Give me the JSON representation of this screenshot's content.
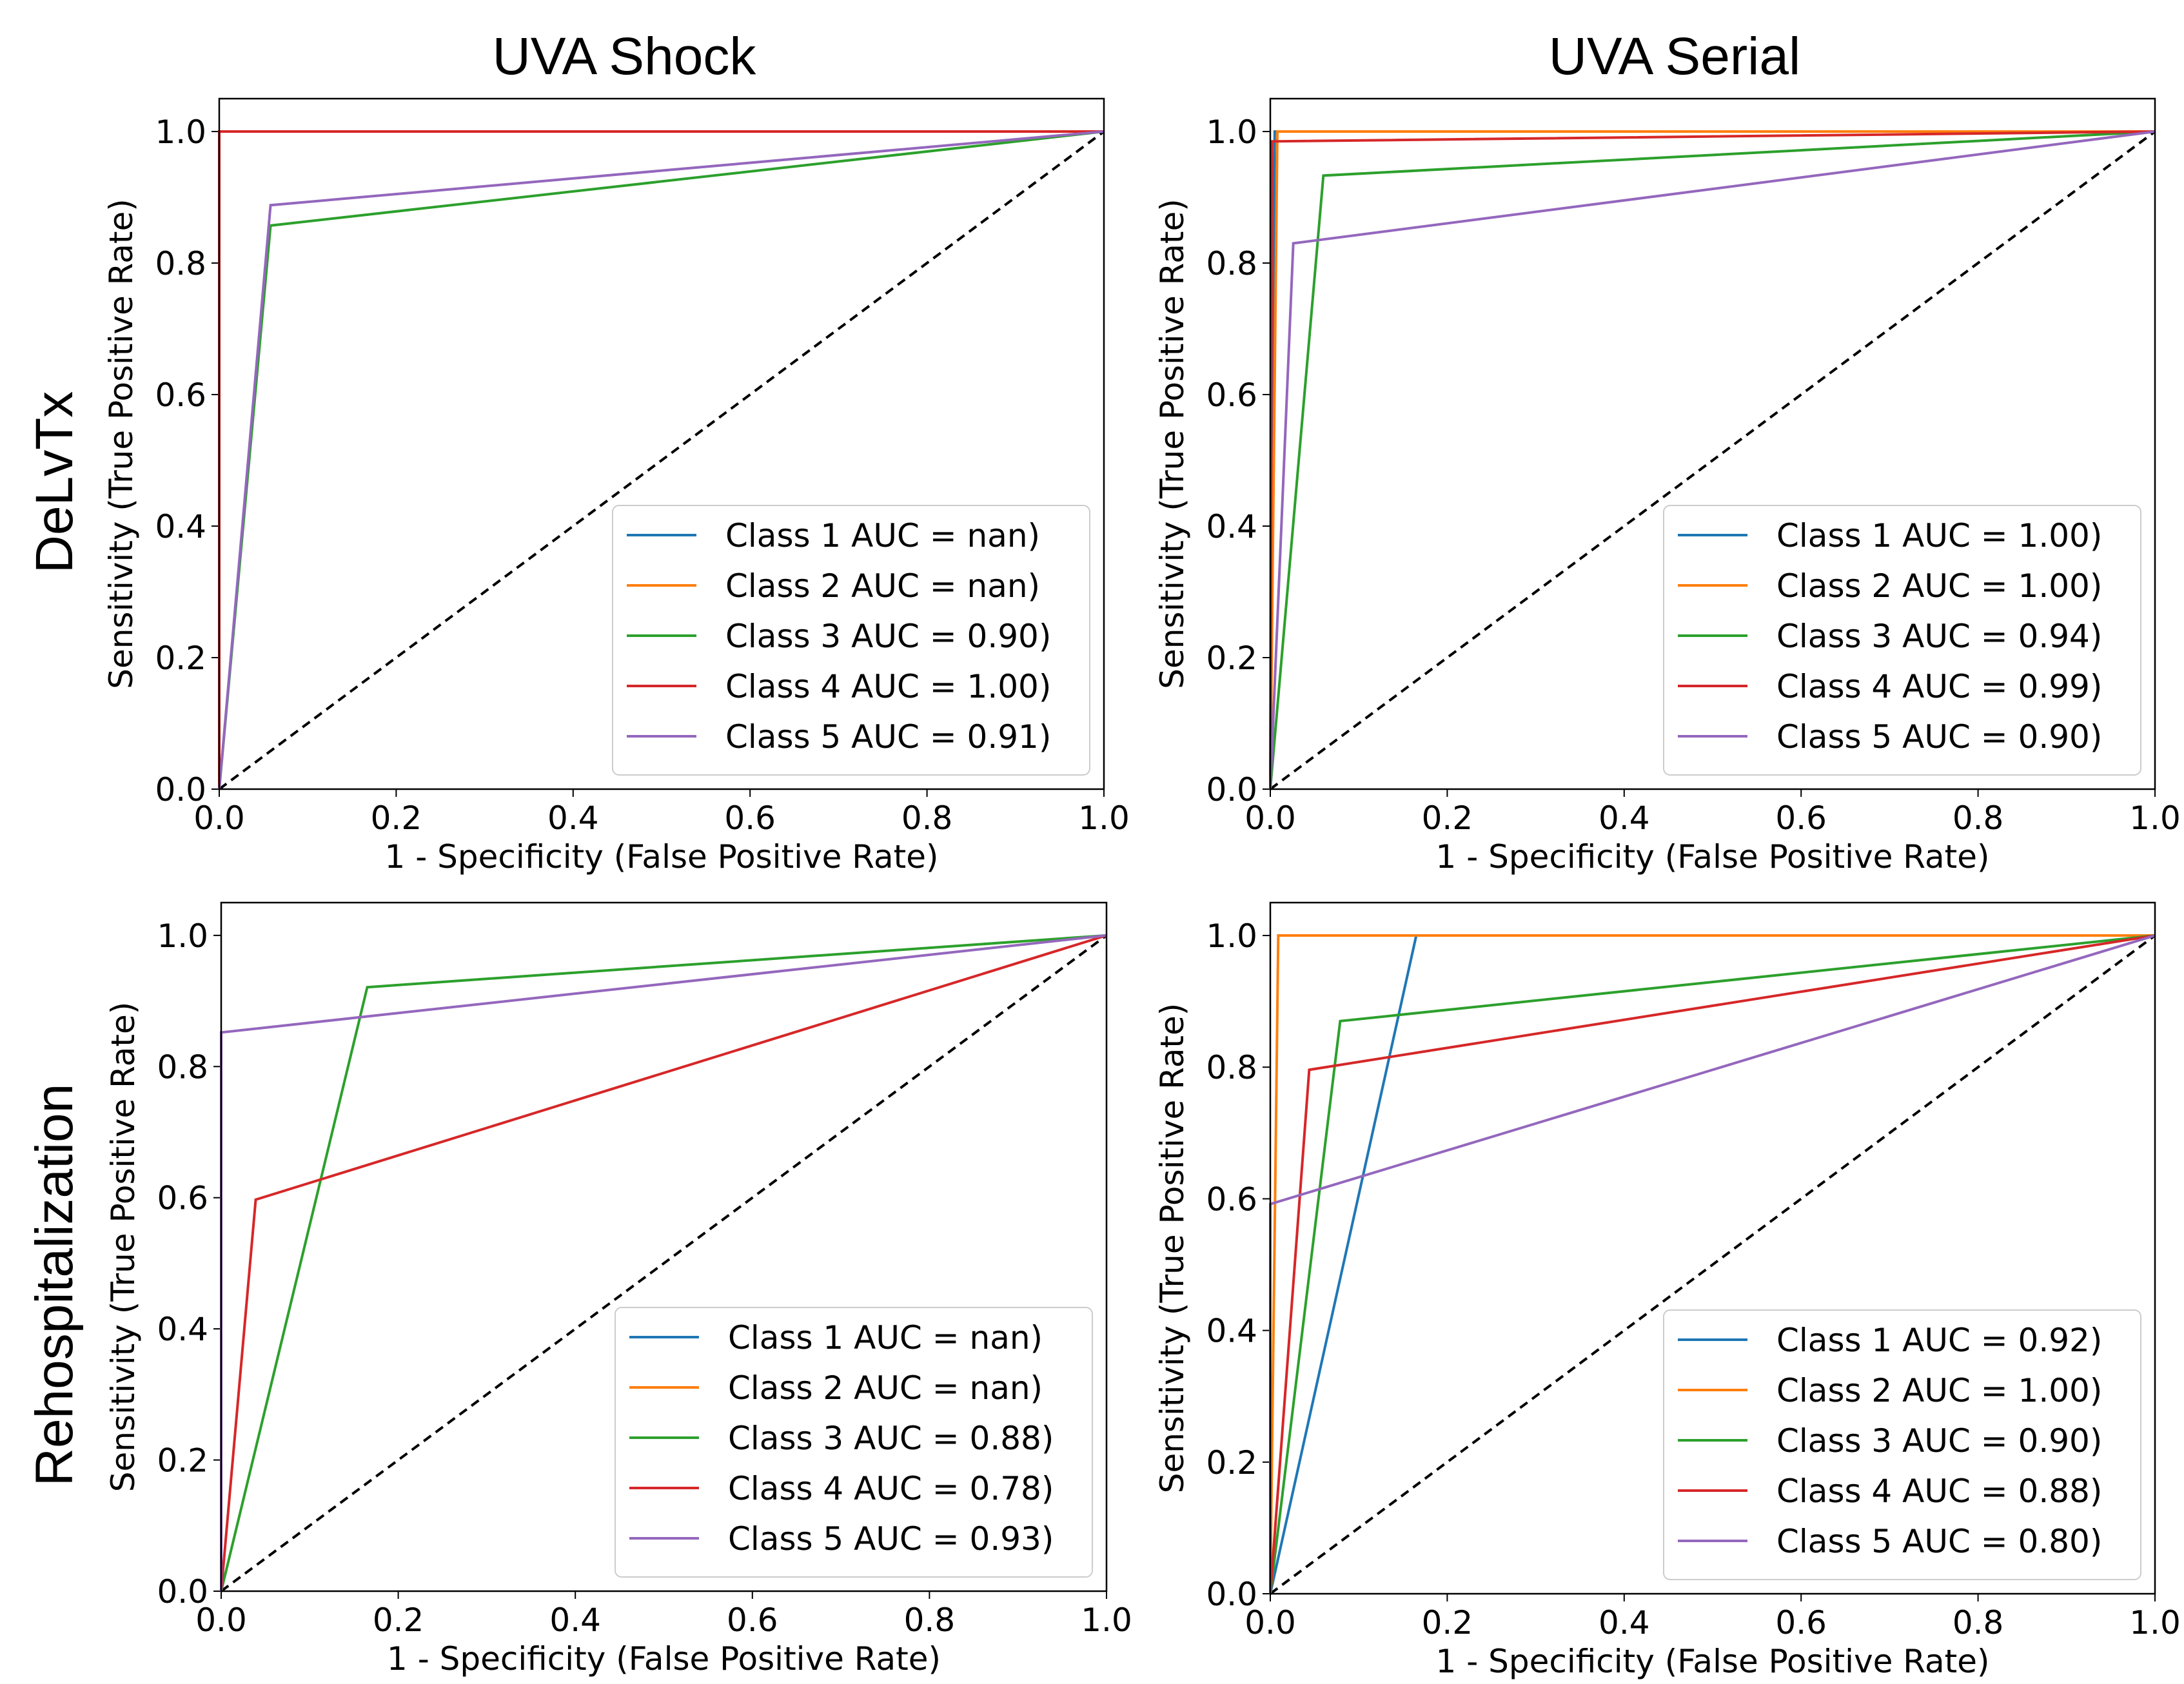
{
  "columns": [
    "UVA Shock",
    "UVA Serial"
  ],
  "rows": [
    "DeLvTx",
    "Rehospitalization"
  ],
  "colors": {
    "class1": "#1f77b4",
    "class2": "#ff7f0e",
    "class3": "#2ca02c",
    "class4": "#d62728",
    "class5": "#9467bd",
    "diagonal": "#000000"
  },
  "chart_data": [
    {
      "type": "line",
      "row": "DeLvTx",
      "column": "UVA Shock",
      "xlabel": "1 - Specificity (False Positive Rate)",
      "ylabel": "Sensitivity (True Positive Rate)",
      "xlim": [
        0,
        1
      ],
      "ylim": [
        0,
        1.05
      ],
      "xticks": [
        "0.0",
        "0.2",
        "0.4",
        "0.6",
        "0.8",
        "1.0"
      ],
      "yticks": [
        "0.0",
        "0.2",
        "0.4",
        "0.6",
        "0.8",
        "1.0"
      ],
      "legend_position": "lower right",
      "diagonal": [
        [
          0,
          0
        ],
        [
          1,
          1
        ]
      ],
      "series": [
        {
          "name": "Class 1 AUC = nan)",
          "color": "class1",
          "points": []
        },
        {
          "name": "Class 2 AUC = nan)",
          "color": "class2",
          "points": []
        },
        {
          "name": "Class 3 AUC = 0.90)",
          "color": "class3",
          "points": [
            [
              0,
              0
            ],
            [
              0.058,
              0.857
            ],
            [
              1,
              1
            ]
          ]
        },
        {
          "name": "Class 4 AUC = 1.00)",
          "color": "class4",
          "points": [
            [
              0,
              0
            ],
            [
              0,
              1
            ],
            [
              1,
              1
            ]
          ]
        },
        {
          "name": "Class 5 AUC = 0.91)",
          "color": "class5",
          "points": [
            [
              0,
              0
            ],
            [
              0.058,
              0.888
            ],
            [
              1,
              1
            ]
          ]
        }
      ]
    },
    {
      "type": "line",
      "row": "DeLvTx",
      "column": "UVA Serial",
      "xlabel": "1 - Specificity (False Positive Rate)",
      "ylabel": "Sensitivity (True Positive Rate)",
      "xlim": [
        0,
        1
      ],
      "ylim": [
        0,
        1.05
      ],
      "xticks": [
        "0.0",
        "0.2",
        "0.4",
        "0.6",
        "0.8",
        "1.0"
      ],
      "yticks": [
        "0.0",
        "0.2",
        "0.4",
        "0.6",
        "0.8",
        "1.0"
      ],
      "legend_position": "lower right",
      "diagonal": [
        [
          0,
          0
        ],
        [
          1,
          1
        ]
      ],
      "series": [
        {
          "name": "Class 1 AUC = 1.00)",
          "color": "class1",
          "points": [
            [
              0,
              0
            ],
            [
              0.005,
              1
            ],
            [
              1,
              1
            ]
          ]
        },
        {
          "name": "Class 2 AUC = 1.00)",
          "color": "class2",
          "points": [
            [
              0,
              0
            ],
            [
              0.008,
              1
            ],
            [
              1,
              1
            ]
          ]
        },
        {
          "name": "Class 3 AUC = 0.94)",
          "color": "class3",
          "points": [
            [
              0,
              0
            ],
            [
              0.06,
              0.933
            ],
            [
              1,
              1
            ]
          ]
        },
        {
          "name": "Class 4 AUC = 0.99)",
          "color": "class4",
          "points": [
            [
              0,
              0
            ],
            [
              0.002,
              0.985
            ],
            [
              1,
              1
            ]
          ]
        },
        {
          "name": "Class 5 AUC = 0.90)",
          "color": "class5",
          "points": [
            [
              0,
              0
            ],
            [
              0.026,
              0.83
            ],
            [
              1,
              1
            ]
          ]
        }
      ]
    },
    {
      "type": "line",
      "row": "Rehospitalization",
      "column": "UVA Shock",
      "xlabel": "1 - Specificity (False Positive Rate)",
      "ylabel": "Sensitivity (True Positive Rate)",
      "xlim": [
        0,
        1
      ],
      "ylim": [
        0,
        1.05
      ],
      "xticks": [
        "0.0",
        "0.2",
        "0.4",
        "0.6",
        "0.8",
        "1.0"
      ],
      "yticks": [
        "0.0",
        "0.2",
        "0.4",
        "0.6",
        "0.8",
        "1.0"
      ],
      "legend_position": "lower right",
      "diagonal": [
        [
          0,
          0
        ],
        [
          1,
          1
        ]
      ],
      "series": [
        {
          "name": "Class 1 AUC = nan)",
          "color": "class1",
          "points": []
        },
        {
          "name": "Class 2 AUC = nan)",
          "color": "class2",
          "points": []
        },
        {
          "name": "Class 3 AUC = 0.88)",
          "color": "class3",
          "points": [
            [
              0,
              0
            ],
            [
              0.165,
              0.921
            ],
            [
              1,
              1
            ]
          ]
        },
        {
          "name": "Class 4 AUC = 0.78)",
          "color": "class4",
          "points": [
            [
              0,
              0
            ],
            [
              0.039,
              0.597
            ],
            [
              1,
              1
            ]
          ]
        },
        {
          "name": "Class 5 AUC = 0.93)",
          "color": "class5",
          "points": [
            [
              0,
              0
            ],
            [
              0,
              0.852
            ],
            [
              1,
              1
            ]
          ]
        }
      ]
    },
    {
      "type": "line",
      "row": "Rehospitalization",
      "column": "UVA Serial",
      "xlabel": "1 - Specificity (False Positive Rate)",
      "ylabel": "Sensitivity (True Positive Rate)",
      "xlim": [
        0,
        1
      ],
      "ylim": [
        0,
        1.05
      ],
      "xticks": [
        "0.0",
        "0.2",
        "0.4",
        "0.6",
        "0.8",
        "1.0"
      ],
      "yticks": [
        "0.0",
        "0.2",
        "0.4",
        "0.6",
        "0.8",
        "1.0"
      ],
      "legend_position": "lower right",
      "diagonal": [
        [
          0,
          0
        ],
        [
          1,
          1
        ]
      ],
      "series": [
        {
          "name": "Class 1 AUC = 0.92)",
          "color": "class1",
          "points": [
            [
              0,
              0
            ],
            [
              0.165,
              1
            ],
            [
              1,
              1
            ]
          ]
        },
        {
          "name": "Class 2 AUC = 1.00)",
          "color": "class2",
          "points": [
            [
              0,
              0
            ],
            [
              0.009,
              1
            ],
            [
              1,
              1
            ]
          ]
        },
        {
          "name": "Class 3 AUC = 0.90)",
          "color": "class3",
          "points": [
            [
              0,
              0
            ],
            [
              0.079,
              0.87
            ],
            [
              1,
              1
            ]
          ]
        },
        {
          "name": "Class 4 AUC = 0.88)",
          "color": "class4",
          "points": [
            [
              0,
              0
            ],
            [
              0.044,
              0.796
            ],
            [
              1,
              1
            ]
          ]
        },
        {
          "name": "Class 5 AUC = 0.80)",
          "color": "class5",
          "points": [
            [
              0,
              0
            ],
            [
              0,
              0.592
            ],
            [
              1,
              1
            ]
          ]
        }
      ]
    }
  ]
}
